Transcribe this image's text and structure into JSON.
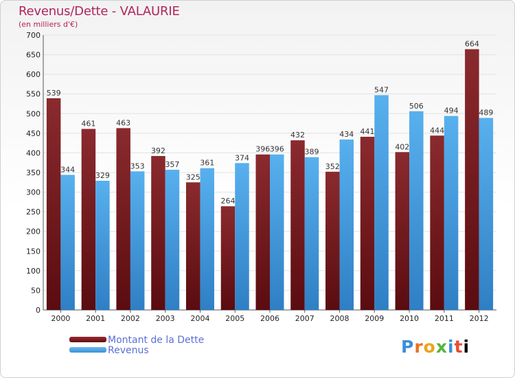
{
  "chart_data": {
    "type": "bar",
    "title": "Revenus/Dette - VALAURIE",
    "subtitle": "(en milliers d'€)",
    "categories": [
      "2000",
      "2001",
      "2002",
      "2003",
      "2004",
      "2005",
      "2006",
      "2007",
      "2008",
      "2009",
      "2010",
      "2011",
      "2012"
    ],
    "series": [
      {
        "name": "Montant de la Dette",
        "color": "#7a1a1e",
        "values": [
          539,
          461,
          463,
          392,
          325,
          264,
          396,
          432,
          352,
          441,
          402,
          444,
          664
        ]
      },
      {
        "name": "Revenus",
        "color": "#47a3e6",
        "values": [
          344,
          329,
          353,
          357,
          361,
          374,
          396,
          389,
          434,
          547,
          506,
          494,
          489
        ]
      }
    ],
    "ylim": [
      0,
      700
    ],
    "yticks": [
      0,
      50,
      100,
      150,
      200,
      250,
      300,
      350,
      400,
      450,
      500,
      550,
      600,
      650,
      700
    ],
    "grid": true,
    "legend": "bottom-left"
  },
  "logo": {
    "text": "Proxiti",
    "letters": [
      "P",
      "r",
      "o",
      "x",
      "i",
      "t",
      "i"
    ]
  }
}
